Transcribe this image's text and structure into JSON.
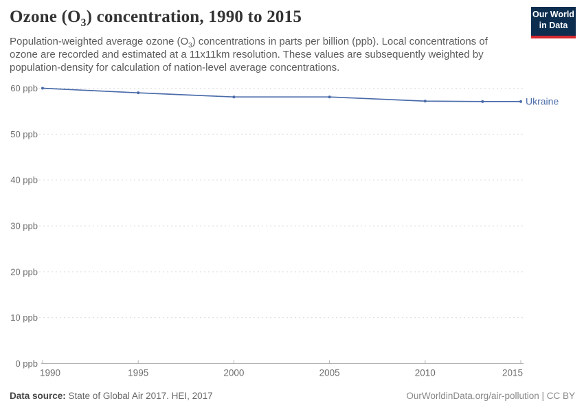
{
  "header": {
    "title_pre": "Ozone (O",
    "title_sub": "3",
    "title_post": ") concentration, 1990 to 2015",
    "subtitle_pre": "Population-weighted average ozone (O",
    "subtitle_sub": "3",
    "subtitle_post": ") concentrations in parts per billion (ppb). Local concentrations of ozone are recorded and estimated at a 11x11km resolution. These values are subsequently weighted by population-density for calculation of nation-level average concentrations."
  },
  "logo": {
    "line1": "Our World",
    "line2": "in Data",
    "bg_color": "#0d2e4f",
    "bar_color": "#d7282f"
  },
  "chart_data": {
    "type": "line",
    "title": "Ozone (O₃) concentration, 1990 to 2015",
    "xlabel": "",
    "ylabel": "",
    "xlim": [
      1990,
      2015
    ],
    "ylim": [
      0,
      60
    ],
    "x_ticks": [
      1990,
      1995,
      2000,
      2005,
      2010,
      2015
    ],
    "y_ticks": [
      0,
      10,
      20,
      30,
      40,
      50,
      60
    ],
    "y_tick_unit": " ppb",
    "grid": "horizontal-dashed",
    "legend_position": "end-of-line-label",
    "series": [
      {
        "name": "Ukraine",
        "color": "#4a6ba9",
        "x": [
          1990,
          1995,
          2000,
          2005,
          2010,
          2013,
          2015
        ],
        "y": [
          60.0,
          59.0,
          58.1,
          58.1,
          57.2,
          57.1,
          57.1
        ]
      }
    ]
  },
  "styles": {
    "gridline_color": "#dcdcdc",
    "axis_color": "#b0b0b0",
    "tick_label_color": "#6e6e6e",
    "entity_label_color": "#4a6ba9"
  },
  "footer": {
    "source_label": "Data source:",
    "source_text": " State of Global Air 2017. HEI, 2017",
    "right_text": "OurWorldinData.org/air-pollution | CC BY"
  }
}
